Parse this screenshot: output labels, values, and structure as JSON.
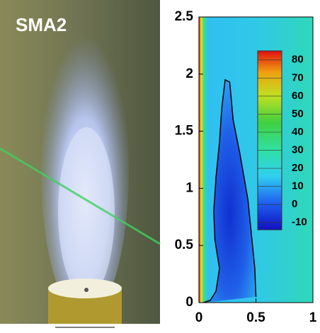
{
  "photo_label": "SMA2",
  "chart_data": {
    "type": "contour",
    "xlim": [
      0,
      1
    ],
    "ylim": [
      0,
      2.5
    ],
    "xticks": [
      0,
      0.5,
      1
    ],
    "yticks": [
      0,
      0.5,
      1,
      1.5,
      2,
      2.5
    ],
    "colorbar": {
      "lim": [
        -14,
        85
      ],
      "ticks": [
        -10,
        0,
        10,
        20,
        30,
        40,
        50,
        60,
        70,
        80
      ]
    },
    "contour": {
      "x": [
        0.04,
        0.1,
        0.15,
        0.18,
        0.14,
        0.13,
        0.15,
        0.18,
        0.2,
        0.23,
        0.27,
        0.3,
        0.36,
        0.43,
        0.46,
        0.49,
        0.5
      ],
      "y": [
        0,
        0.02,
        0.1,
        0.3,
        0.55,
        0.8,
        1.1,
        1.4,
        1.7,
        1.95,
        1.93,
        1.6,
        1.3,
        0.9,
        0.6,
        0.3,
        0.05
      ]
    }
  }
}
